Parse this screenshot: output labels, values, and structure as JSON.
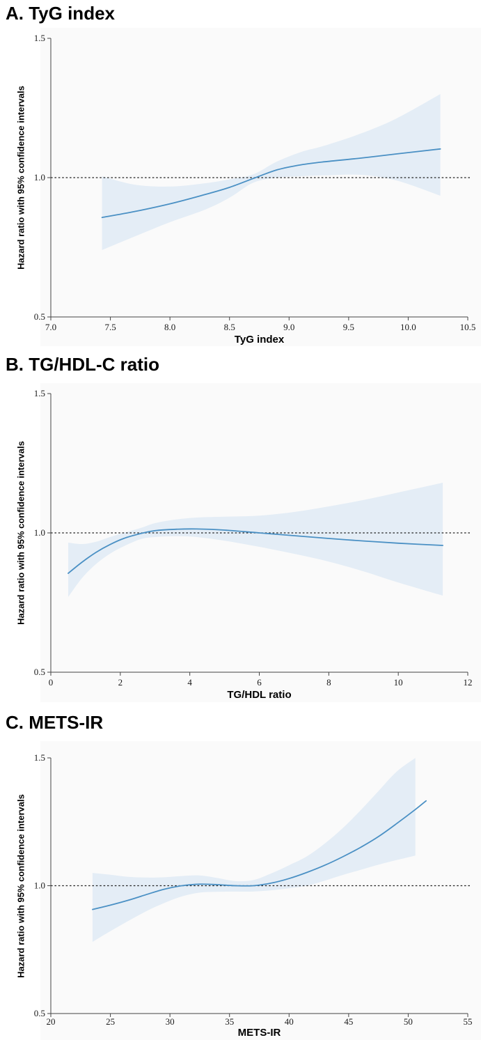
{
  "panels": [
    {
      "heading": "A. TyG index"
    },
    {
      "heading": "B. TG/HDL-C ratio"
    },
    {
      "heading": "C. METS-IR"
    }
  ],
  "chart_data": [
    {
      "type": "line",
      "title": "A. TyG index",
      "xlabel": "TyG index",
      "ylabel": "Hazard ratio with 95% confidence intervals",
      "xlim": [
        7.0,
        10.5
      ],
      "ylim": [
        0.5,
        1.5
      ],
      "xticks": [
        7.0,
        7.5,
        8.0,
        8.5,
        9.0,
        9.5,
        10.0,
        10.5
      ],
      "xtick_labels": [
        "7.0",
        "7.5",
        "8.0",
        "8.5",
        "9.0",
        "9.5",
        "10.0",
        "10.5"
      ],
      "yticks": [
        0.5,
        1.0,
        1.5
      ],
      "ytick_labels": [
        "0.5",
        "1.0",
        "1.5"
      ],
      "reference_line_y": 1.0,
      "grid": "off",
      "legend": "none",
      "line_color": "#4a90c4",
      "band_color": "#e4edf6",
      "series": {
        "x": [
          7.43,
          7.7,
          8.0,
          8.3,
          8.5,
          8.7,
          8.9,
          9.1,
          9.3,
          9.6,
          9.9,
          10.27
        ],
        "hazard_ratio": [
          0.857,
          0.878,
          0.906,
          0.94,
          0.965,
          0.997,
          1.028,
          1.046,
          1.057,
          1.07,
          1.085,
          1.103
        ],
        "ci_lower": [
          0.74,
          0.788,
          0.84,
          0.886,
          0.928,
          0.982,
          1.0,
          1.005,
          1.008,
          1.01,
          0.99,
          0.935
        ],
        "ci_upper": [
          1.005,
          0.975,
          0.968,
          0.98,
          0.994,
          1.012,
          1.058,
          1.092,
          1.115,
          1.158,
          1.212,
          1.3
        ]
      }
    },
    {
      "type": "line",
      "title": "B. TG/HDL-C ratio",
      "xlabel": "TG/HDL ratio",
      "ylabel": "Hazard ratio with 95% confidence intervals",
      "xlim": [
        0,
        12
      ],
      "ylim": [
        0.5,
        1.5
      ],
      "xticks": [
        0,
        2,
        4,
        6,
        8,
        10,
        12
      ],
      "xtick_labels": [
        "0",
        "2",
        "4",
        "6",
        "8",
        "10",
        "12"
      ],
      "yticks": [
        0.5,
        1.0,
        1.5
      ],
      "ytick_labels": [
        "0.5",
        "1.0",
        "1.5"
      ],
      "reference_line_y": 1.0,
      "grid": "off",
      "legend": "none",
      "line_color": "#4a90c4",
      "band_color": "#e4edf6",
      "series": {
        "x": [
          0.5,
          0.9,
          1.3,
          1.7,
          2.1,
          2.6,
          3.0,
          3.6,
          4.2,
          5.0,
          6.0,
          7.0,
          8.0,
          9.0,
          10.0,
          11.28
        ],
        "hazard_ratio": [
          0.855,
          0.895,
          0.93,
          0.958,
          0.98,
          0.998,
          1.008,
          1.013,
          1.014,
          1.01,
          1.0,
          0.99,
          0.98,
          0.971,
          0.963,
          0.955
        ],
        "ci_lower": [
          0.77,
          0.838,
          0.888,
          0.925,
          0.952,
          0.978,
          0.985,
          0.988,
          0.985,
          0.972,
          0.95,
          0.925,
          0.897,
          0.862,
          0.822,
          0.775
        ],
        "ci_upper": [
          0.965,
          0.96,
          0.968,
          0.985,
          1.0,
          1.018,
          1.035,
          1.048,
          1.055,
          1.058,
          1.062,
          1.075,
          1.095,
          1.118,
          1.145,
          1.18
        ]
      }
    },
    {
      "type": "line",
      "title": "C. METS-IR",
      "xlabel": "METS-IR",
      "ylabel": "Hazard ratio with 95% confidence intervals",
      "xlim": [
        20,
        55
      ],
      "ylim": [
        0.5,
        1.5
      ],
      "xticks": [
        20,
        25,
        30,
        35,
        40,
        45,
        50,
        55
      ],
      "xtick_labels": [
        "20",
        "25",
        "30",
        "35",
        "40",
        "45",
        "50",
        "55"
      ],
      "yticks": [
        0.5,
        1.0,
        1.5
      ],
      "ytick_labels": [
        "0.5",
        "1.0",
        "1.5"
      ],
      "reference_line_y": 1.0,
      "grid": "off",
      "legend": "none",
      "line_color": "#4a90c4",
      "band_color": "#e4edf6",
      "series": {
        "x": [
          23.5,
          25.0,
          26.5,
          28.0,
          29.5,
          31.0,
          32.5,
          34.0,
          35.5,
          37.0,
          38.5,
          40.0,
          41.5,
          43.0,
          44.5,
          46.0,
          47.5,
          49.0,
          50.6,
          51.5
        ],
        "hazard_ratio": [
          0.907,
          0.924,
          0.943,
          0.965,
          0.986,
          1.0,
          1.006,
          1.004,
          1.0,
          1.0,
          1.01,
          1.028,
          1.052,
          1.08,
          1.113,
          1.15,
          1.192,
          1.242,
          1.298,
          1.332
        ],
        "ci_lower": [
          0.78,
          0.822,
          0.862,
          0.9,
          0.932,
          0.958,
          0.973,
          0.976,
          0.977,
          0.977,
          0.982,
          0.99,
          1.0,
          1.02,
          1.042,
          1.062,
          1.082,
          1.1,
          1.118,
          null
        ],
        "ci_upper": [
          1.05,
          1.043,
          1.035,
          1.032,
          1.033,
          1.038,
          1.04,
          1.03,
          1.018,
          1.022,
          1.048,
          1.08,
          1.115,
          1.165,
          1.225,
          1.295,
          1.37,
          1.445,
          1.5,
          null
        ]
      }
    }
  ]
}
